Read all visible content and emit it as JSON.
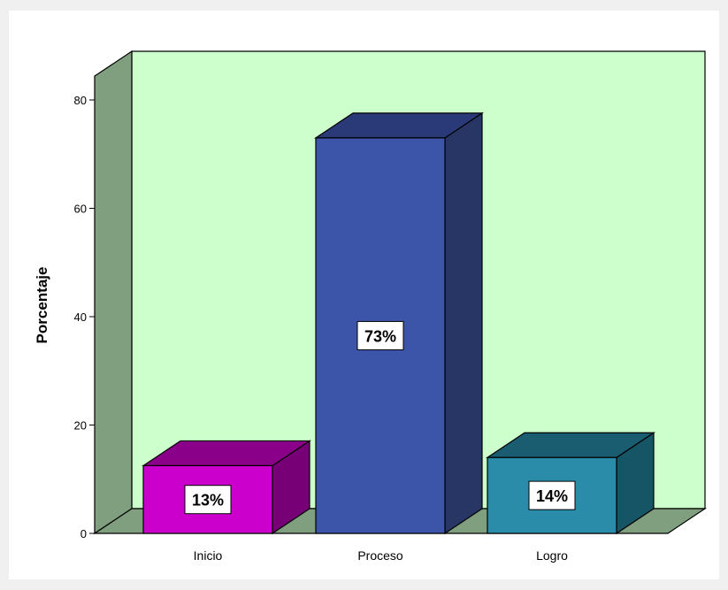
{
  "chart_data": {
    "type": "bar",
    "title": "",
    "xlabel": "",
    "ylabel": "Porcentaje",
    "ylim": [
      0,
      80
    ],
    "yticks": [
      "0",
      "20",
      "40",
      "60",
      "80"
    ],
    "grid": false,
    "categories": [
      "Inicio",
      "Proceso",
      "Logro"
    ],
    "values": [
      12.5,
      73,
      14
    ],
    "data_labels": [
      "13%",
      "73%",
      "14%"
    ],
    "colors": [
      {
        "front": "#cc00cc",
        "top": "#8a0088",
        "side": "#770077"
      },
      {
        "front": "#3d55a8",
        "top": "#2a3a78",
        "side": "#283666"
      },
      {
        "front": "#2a8ca8",
        "top": "#1a5c70",
        "side": "#165566"
      }
    ],
    "background": {
      "panel": "#ccffcc",
      "wall": "#7f9f7f",
      "floor": "#7f9f7f"
    }
  }
}
